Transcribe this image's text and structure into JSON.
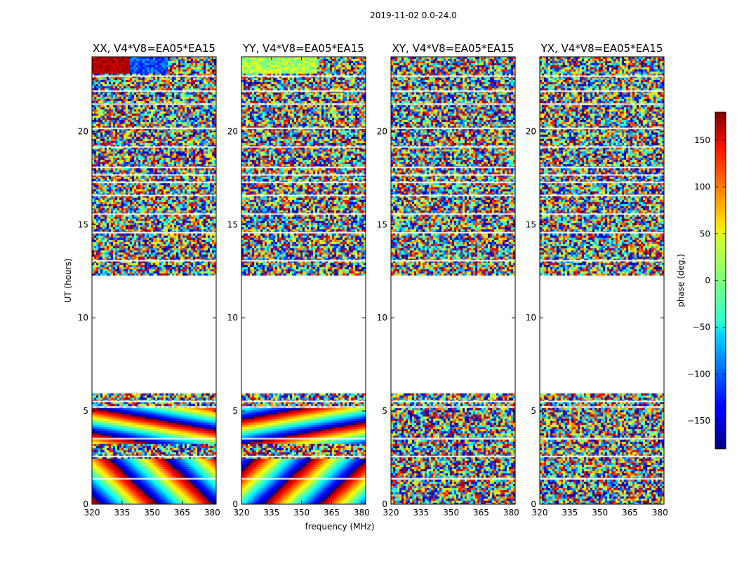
{
  "chart_data": {
    "type": "heatmap",
    "suptitle": "2019-11-02 0.0-24.0",
    "xlabel": "frequency (MHz)",
    "ylabel": "UT (hours)",
    "xlim": [
      320,
      382
    ],
    "ylim": [
      0,
      24
    ],
    "x_ticks": [
      "320",
      "335",
      "350",
      "365",
      "380"
    ],
    "x_tick_values": [
      320,
      335,
      350,
      365,
      380
    ],
    "y_ticks": [
      "0",
      "5",
      "10",
      "15",
      "20"
    ],
    "y_tick_values": [
      0,
      5,
      10,
      15,
      20
    ],
    "panels": [
      {
        "title": "XX, V4*V8=EA05*EA15",
        "polarization": "XX",
        "coherent_phase_wraps": true
      },
      {
        "title": "YY, V4*V8=EA05*EA15",
        "polarization": "YY",
        "coherent_phase_wraps": true
      },
      {
        "title": "XY, V4*V8=EA05*EA15",
        "polarization": "XY",
        "coherent_phase_wraps": false
      },
      {
        "title": "YX, V4*V8=EA05*EA15",
        "polarization": "YX",
        "coherent_phase_wraps": false
      }
    ],
    "data_gaps_ut": [
      [
        6.05,
        12.3
      ]
    ],
    "colorbar": {
      "label": "phase (deg.)",
      "range": [
        -180,
        180
      ],
      "ticks": [
        "150",
        "100",
        "50",
        "0",
        "−50",
        "−100",
        "−150"
      ],
      "tick_values": [
        150,
        100,
        50,
        0,
        -50,
        -100,
        -150
      ],
      "colormap": "jet",
      "footnote": "....."
    }
  }
}
